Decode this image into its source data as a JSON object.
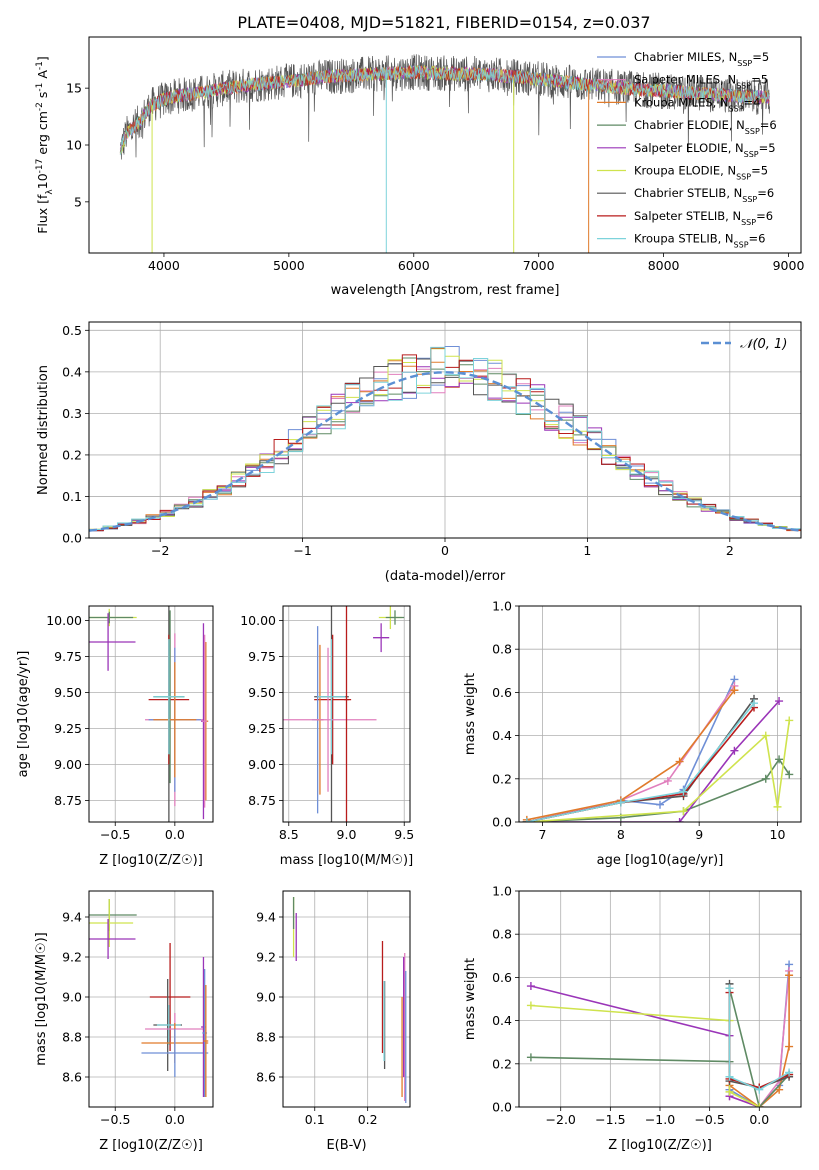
{
  "figure_title": "PLATE=0408, MJD=51821, FIBERID=0154, z=0.037",
  "colors": {
    "chabrier_miles": "#6f8fd6",
    "salpeter_miles": "#e07fbd",
    "kroupa_miles": "#e07b2b",
    "chabrier_elodie": "#5f8a64",
    "salpeter_elodie": "#9a35b8",
    "kroupa_elodie": "#cfe34d",
    "chabrier_stelib": "#555555",
    "salpeter_stelib": "#b81c1c",
    "kroupa_stelib": "#7dd3db",
    "normal_curve": "#5b8fd3"
  },
  "chart_data": [
    {
      "id": "spectrum",
      "type": "line",
      "title": "PLATE=0408, MJD=51821, FIBERID=0154, z=0.037",
      "xlabel": "wavelength [Angstrom, rest frame]",
      "ylabel": "Flux [f_λ 10^-17 erg cm^-2 s^-1 A^-1]",
      "xlim": [
        3400,
        9100
      ],
      "ylim": [
        0.5,
        19.5
      ],
      "xticks": [
        4000,
        5000,
        6000,
        7000,
        8000,
        9000
      ],
      "yticks": [
        5,
        10,
        15
      ],
      "grid": false,
      "legend_position": "top-right",
      "legend": [
        "Chabrier MILES, N_SSP=5",
        "Salpeter MILES, N_SSP=5",
        "Kroupa MILES, N_SSP=4",
        "Chabrier ELODIE, N_SSP=6",
        "Salpeter ELODIE, N_SSP=5",
        "Kroupa ELODIE, N_SSP=5",
        "Chabrier STELIB, N_SSP=6",
        "Salpeter STELIB, N_SSP=6",
        "Kroupa STELIB, N_SSP=6"
      ],
      "continuum": {
        "x": [
          3650,
          3700,
          3800,
          3900,
          4000,
          4100,
          4300,
          4500,
          4700,
          5000,
          5300,
          5600,
          6000,
          6300,
          6600,
          7000,
          7400,
          7800,
          8200,
          8600,
          8850
        ],
        "y": [
          9.5,
          11,
          12,
          13.5,
          14,
          14.3,
          14.6,
          15,
          15.3,
          15.6,
          16,
          16.2,
          16.4,
          16.3,
          16.2,
          15.8,
          15.3,
          14.9,
          14.6,
          14.3,
          14.2
        ]
      },
      "model_end_drops": [
        {
          "series": "Kroupa ELODIE",
          "x": 3905
        },
        {
          "series": "Kroupa STELIB",
          "x": 5780
        },
        {
          "series": "Kroupa ELODIE",
          "x": 6800
        },
        {
          "series": "Kroupa MILES",
          "x": 7400
        }
      ]
    },
    {
      "id": "residual-hist",
      "type": "histogram",
      "xlabel": "(data-model)/error",
      "ylabel": "Normed distribution",
      "xlim": [
        -2.5,
        2.5
      ],
      "ylim": [
        0,
        0.52
      ],
      "xticks": [
        -2,
        -1,
        0,
        1,
        2
      ],
      "yticks": [
        0.0,
        0.1,
        0.2,
        0.3,
        0.4,
        0.5
      ],
      "grid": true,
      "legend_position": "top-right",
      "legend": [
        "𝒩(0, 1)"
      ],
      "bin_width": 0.1
    },
    {
      "id": "age-vs-Z",
      "type": "errorbar",
      "xlabel": "Z [log10(Z/Z☉)]",
      "ylabel": "age  [log10(age/yr)]",
      "xlim": [
        -0.72,
        0.32
      ],
      "ylim": [
        8.6,
        10.1
      ],
      "xticks": [
        -0.5,
        0.0
      ],
      "yticks": [
        8.75,
        9.0,
        9.25,
        9.5,
        9.75,
        10.0
      ],
      "grid": true,
      "points": [
        {
          "series": "Kroupa ELODIE",
          "x": -0.55,
          "y": 10.02,
          "xerr": 0.23,
          "yerr": 0.06
        },
        {
          "series": "Chabrier ELODIE",
          "x": -0.55,
          "y": 10.02,
          "xerr": 0.2,
          "yerr": 0.04
        },
        {
          "series": "Salpeter ELODIE",
          "x": -0.56,
          "y": 9.85,
          "xerr": 0.23,
          "yerr": 0.2
        },
        {
          "series": "Chabrier STELIB",
          "x": -0.05,
          "y": 9.47,
          "xerr": 0.13,
          "yerr": 0.87
        },
        {
          "series": "Salpeter STELIB",
          "x": -0.05,
          "y": 9.45,
          "xerr": 0.17,
          "yerr": 0.45
        },
        {
          "series": "Chabrier ELODIE",
          "x": -0.04,
          "y": 9.47,
          "xerr": 0.12,
          "yerr": 0.6
        },
        {
          "series": "Salpeter MILES",
          "x": 0.0,
          "y": 9.31,
          "xerr": 0.25,
          "yerr": 0.6
        },
        {
          "series": "Chabrier MILES",
          "x": 0.0,
          "y": 9.31,
          "xerr": 0.22,
          "yerr": 0.5
        },
        {
          "series": "Kroupa MILES",
          "x": 0.0,
          "y": 9.31,
          "xerr": 0.18,
          "yerr": 0.4
        },
        {
          "series": "Salpeter ELODIE",
          "x": 0.24,
          "y": 9.3,
          "xerr": 0.02,
          "yerr": 0.68
        },
        {
          "series": "Kroupa MILES",
          "x": 0.26,
          "y": 9.3,
          "xerr": 0.02,
          "yerr": 0.55
        },
        {
          "series": "Salpeter MILES",
          "x": 0.25,
          "y": 9.3,
          "xerr": 0.02,
          "yerr": 0.6
        },
        {
          "series": "Kroupa STELIB",
          "x": -0.05,
          "y": 9.47,
          "xerr": 0.13,
          "yerr": 0.4
        }
      ]
    },
    {
      "id": "age-vs-mass",
      "type": "errorbar",
      "xlabel": "mass [log10(M/M☉)]",
      "ylabel": "",
      "xlim": [
        8.45,
        9.55
      ],
      "ylim": [
        8.6,
        10.1
      ],
      "xticks": [
        8.5,
        9.0,
        9.5
      ],
      "yticks": [
        8.75,
        9.0,
        9.25,
        9.5,
        9.75,
        10.0
      ],
      "grid": true,
      "points": [
        {
          "series": "Kroupa ELODIE",
          "x": 9.38,
          "y": 10.02,
          "xerr": 0.1,
          "yerr": 0.08
        },
        {
          "series": "Chabrier ELODIE",
          "x": 9.42,
          "y": 10.02,
          "xerr": 0.08,
          "yerr": 0.05
        },
        {
          "series": "Salpeter ELODIE",
          "x": 9.3,
          "y": 9.88,
          "xerr": 0.07,
          "yerr": 0.1
        },
        {
          "series": "Chabrier STELIB",
          "x": 8.87,
          "y": 9.47,
          "xerr": 0.15,
          "yerr": 0.87
        },
        {
          "series": "Salpeter STELIB",
          "x": 8.88,
          "y": 9.45,
          "xerr": 0.16,
          "yerr": 0.45
        },
        {
          "series": "Chabrier MILES",
          "x": 8.75,
          "y": 9.31,
          "xerr": 0.05,
          "yerr": 0.65
        },
        {
          "series": "Kroupa MILES",
          "x": 8.77,
          "y": 9.31,
          "xerr": 0.03,
          "yerr": 0.52
        },
        {
          "series": "Salpeter MILES",
          "x": 8.84,
          "y": 9.31,
          "xerr": 0.42,
          "yerr": 0.5
        },
        {
          "series": "Salpeter STELIB",
          "x": 9.0,
          "y": 9.45,
          "xerr": 0.02,
          "yerr": 0.86
        },
        {
          "series": "Kroupa STELIB",
          "x": 8.87,
          "y": 9.47,
          "xerr": 0.12,
          "yerr": 0.4
        }
      ]
    },
    {
      "id": "weight-vs-age",
      "type": "line",
      "xlabel": "age  [log10(age/yr)]",
      "ylabel": "mass weight",
      "xlim": [
        6.7,
        10.3
      ],
      "ylim": [
        0,
        1
      ],
      "xticks": [
        7,
        8,
        9,
        10
      ],
      "yticks": [
        0.0,
        0.2,
        0.4,
        0.6,
        0.8,
        1.0
      ],
      "grid": true,
      "series": [
        {
          "key": "chabrier_miles",
          "x": [
            6.8,
            8.0,
            8.5,
            8.8,
            9.45
          ],
          "y": [
            0.0,
            0.1,
            0.08,
            0.15,
            0.66
          ]
        },
        {
          "key": "salpeter_miles",
          "x": [
            6.8,
            8.0,
            8.6,
            9.45
          ],
          "y": [
            0.0,
            0.1,
            0.19,
            0.63
          ]
        },
        {
          "key": "kroupa_miles",
          "x": [
            6.8,
            8.0,
            8.75,
            9.45
          ],
          "y": [
            0.01,
            0.1,
            0.28,
            0.61
          ]
        },
        {
          "key": "chabrier_elodie",
          "x": [
            6.8,
            8.0,
            8.8,
            9.85,
            10.02,
            10.15
          ],
          "y": [
            0.0,
            0.02,
            0.05,
            0.2,
            0.29,
            0.22
          ]
        },
        {
          "key": "salpeter_elodie",
          "x": [
            6.8,
            8.75,
            9.45,
            10.02
          ],
          "y": [
            0.0,
            0.0,
            0.33,
            0.56
          ]
        },
        {
          "key": "kroupa_elodie",
          "x": [
            6.8,
            8.8,
            9.85,
            10.0,
            10.15
          ],
          "y": [
            0.0,
            0.05,
            0.4,
            0.07,
            0.47
          ]
        },
        {
          "key": "chabrier_stelib",
          "x": [
            6.8,
            8.0,
            8.8,
            9.7
          ],
          "y": [
            0.0,
            0.09,
            0.12,
            0.57
          ]
        },
        {
          "key": "salpeter_stelib",
          "x": [
            6.8,
            8.0,
            8.8,
            9.7
          ],
          "y": [
            0.0,
            0.09,
            0.13,
            0.53
          ]
        },
        {
          "key": "kroupa_stelib",
          "x": [
            6.8,
            8.0,
            8.8,
            9.7
          ],
          "y": [
            0.0,
            0.09,
            0.14,
            0.55
          ]
        }
      ]
    },
    {
      "id": "mass-vs-Z",
      "type": "errorbar",
      "xlabel": "Z [log10(Z/Z☉)]",
      "ylabel": "mass [log10(M/M☉)]",
      "xlim": [
        -0.72,
        0.32
      ],
      "ylim": [
        8.45,
        9.53
      ],
      "xticks": [
        -0.5,
        0.0
      ],
      "yticks": [
        8.6,
        8.8,
        9.0,
        9.2,
        9.4
      ],
      "grid": true,
      "points": [
        {
          "series": "Chabrier ELODIE",
          "x": -0.55,
          "y": 9.41,
          "xerr": 0.23,
          "yerr": 0.08
        },
        {
          "series": "Kroupa ELODIE",
          "x": -0.55,
          "y": 9.37,
          "xerr": 0.2,
          "yerr": 0.12
        },
        {
          "series": "Salpeter ELODIE",
          "x": -0.56,
          "y": 9.29,
          "xerr": 0.23,
          "yerr": 0.1
        },
        {
          "series": "Salpeter STELIB",
          "x": -0.04,
          "y": 9.0,
          "xerr": 0.17,
          "yerr": 0.27
        },
        {
          "series": "Chabrier STELIB",
          "x": -0.06,
          "y": 8.86,
          "xerr": 0.12,
          "yerr": 0.23
        },
        {
          "series": "Kroupa STELIB",
          "x": -0.05,
          "y": 8.86,
          "xerr": 0.1,
          "yerr": 0.1
        },
        {
          "series": "Salpeter MILES",
          "x": 0.0,
          "y": 8.84,
          "xerr": 0.25,
          "yerr": 0.08
        },
        {
          "series": "Kroupa MILES",
          "x": 0.0,
          "y": 8.77,
          "xerr": 0.28,
          "yerr": 0.1
        },
        {
          "series": "Chabrier MILES",
          "x": 0.0,
          "y": 8.72,
          "xerr": 0.28,
          "yerr": 0.12
        },
        {
          "series": "Salpeter ELODIE",
          "x": 0.24,
          "y": 8.85,
          "xerr": 0.02,
          "yerr": 0.35
        },
        {
          "series": "Chabrier MILES",
          "x": 0.25,
          "y": 8.82,
          "xerr": 0.02,
          "yerr": 0.32
        },
        {
          "series": "Kroupa MILES",
          "x": 0.26,
          "y": 8.78,
          "xerr": 0.02,
          "yerr": 0.28
        }
      ]
    },
    {
      "id": "mass-vs-ebv",
      "type": "errorbar",
      "xlabel": "E(B-V)",
      "ylabel": "",
      "xlim": [
        0.04,
        0.28
      ],
      "ylim": [
        8.45,
        9.53
      ],
      "xticks": [
        0.1,
        0.2
      ],
      "yticks": [
        8.6,
        8.8,
        9.0,
        9.2,
        9.4
      ],
      "grid": true,
      "points": [
        {
          "series": "Kroupa ELODIE",
          "x": 0.06,
          "y": 9.35,
          "xerr": 0.0,
          "yerr": 0.15
        },
        {
          "series": "Salpeter ELODIE",
          "x": 0.065,
          "y": 9.3,
          "xerr": 0.0,
          "yerr": 0.12
        },
        {
          "series": "Chabrier ELODIE",
          "x": 0.06,
          "y": 9.42,
          "xerr": 0.0,
          "yerr": 0.08
        },
        {
          "series": "Salpeter STELIB",
          "x": 0.228,
          "y": 9.0,
          "xerr": 0.0,
          "yerr": 0.28
        },
        {
          "series": "Chabrier STELIB",
          "x": 0.232,
          "y": 8.86,
          "xerr": 0.0,
          "yerr": 0.22
        },
        {
          "series": "Kroupa STELIB",
          "x": 0.231,
          "y": 8.88,
          "xerr": 0.0,
          "yerr": 0.2
        },
        {
          "series": "Salpeter MILES",
          "x": 0.27,
          "y": 8.85,
          "xerr": 0.0,
          "yerr": 0.37
        },
        {
          "series": "Kroupa MILES",
          "x": 0.265,
          "y": 8.75,
          "xerr": 0.0,
          "yerr": 0.25
        },
        {
          "series": "Chabrier MILES",
          "x": 0.272,
          "y": 8.8,
          "xerr": 0.0,
          "yerr": 0.33
        },
        {
          "series": "Salpeter ELODIE",
          "x": 0.268,
          "y": 8.9,
          "xerr": 0.0,
          "yerr": 0.3
        }
      ]
    },
    {
      "id": "weight-vs-Z",
      "type": "line",
      "xlabel": "Z [log10(Z/Z☉)]",
      "ylabel": "mass weight",
      "xlim": [
        -2.42,
        0.42
      ],
      "ylim": [
        0,
        1
      ],
      "xticks": [
        -2.0,
        -1.5,
        -1.0,
        -0.5,
        0.0
      ],
      "yticks": [
        0.0,
        0.2,
        0.4,
        0.6,
        0.8,
        1.0
      ],
      "grid": true,
      "series": [
        {
          "key": "chabrier_miles",
          "x": [
            -0.3,
            0.0,
            0.2,
            0.3
          ],
          "y": [
            0.08,
            0.0,
            0.1,
            0.66
          ]
        },
        {
          "key": "salpeter_miles",
          "x": [
            -0.3,
            0.0,
            0.2,
            0.3
          ],
          "y": [
            0.05,
            0.0,
            0.12,
            0.63
          ]
        },
        {
          "key": "kroupa_miles",
          "x": [
            -0.3,
            0.0,
            0.2,
            0.3,
            0.3
          ],
          "y": [
            0.1,
            0.0,
            0.08,
            0.28,
            0.61
          ]
        },
        {
          "key": "chabrier_elodie",
          "x": [
            -2.3,
            -0.3,
            -0.3,
            0.0,
            0.3
          ],
          "y": [
            0.23,
            0.21,
            0.55,
            0.0,
            0.15
          ]
        },
        {
          "key": "salpeter_elodie",
          "x": [
            -2.3,
            -0.3,
            -0.3,
            0.0
          ],
          "y": [
            0.56,
            0.33,
            0.05,
            0.0
          ]
        },
        {
          "key": "kroupa_elodie",
          "x": [
            -2.3,
            -0.3,
            -0.3,
            0.0
          ],
          "y": [
            0.47,
            0.4,
            0.07,
            0.0
          ]
        },
        {
          "key": "chabrier_stelib",
          "x": [
            -0.3,
            -0.3,
            0.0,
            0.3
          ],
          "y": [
            0.57,
            0.12,
            0.09,
            0.14
          ]
        },
        {
          "key": "salpeter_stelib",
          "x": [
            -0.3,
            -0.3,
            0.0,
            0.3
          ],
          "y": [
            0.53,
            0.13,
            0.09,
            0.15
          ]
        },
        {
          "key": "kroupa_stelib",
          "x": [
            -0.3,
            -0.3,
            0.0,
            0.3
          ],
          "y": [
            0.55,
            0.14,
            0.08,
            0.16
          ]
        }
      ]
    }
  ]
}
